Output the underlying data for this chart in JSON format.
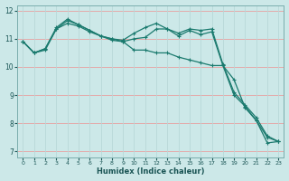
{
  "title": "",
  "xlabel": "Humidex (Indice chaleur)",
  "ylabel": "",
  "xlim": [
    -0.5,
    23.5
  ],
  "ylim": [
    6.8,
    12.2
  ],
  "xticks": [
    0,
    1,
    2,
    3,
    4,
    5,
    6,
    7,
    8,
    9,
    10,
    11,
    12,
    13,
    14,
    15,
    16,
    17,
    18,
    19,
    20,
    21,
    22,
    23
  ],
  "yticks": [
    7,
    8,
    9,
    10,
    11,
    12
  ],
  "bg_color": "#cce8e8",
  "grid_color_h": "#e8a0a0",
  "grid_color_v": "#b8d8d8",
  "line_color": "#1a7a6e",
  "line_width": 0.9,
  "marker": "+",
  "marker_size": 3.5,
  "line1_y": [
    10.9,
    10.5,
    10.6,
    11.35,
    11.55,
    11.45,
    11.25,
    11.1,
    10.95,
    10.9,
    11.0,
    11.05,
    11.35,
    11.35,
    11.1,
    11.3,
    11.15,
    11.25,
    10.05,
    9.0,
    8.6,
    8.1,
    7.3,
    7.35
  ],
  "line2_y": [
    10.9,
    10.5,
    10.65,
    11.35,
    11.65,
    11.5,
    11.3,
    11.1,
    11.0,
    10.95,
    11.2,
    11.4,
    11.55,
    11.35,
    11.2,
    11.35,
    11.3,
    11.35,
    10.1,
    9.1,
    8.65,
    8.2,
    7.55,
    7.35
  ],
  "line3_y": [
    10.9,
    10.5,
    10.65,
    11.4,
    11.7,
    11.5,
    11.3,
    11.1,
    11.0,
    10.9,
    10.6,
    10.6,
    10.5,
    10.5,
    10.35,
    10.25,
    10.15,
    10.05,
    10.05,
    9.55,
    8.55,
    8.1,
    7.5,
    7.35
  ]
}
